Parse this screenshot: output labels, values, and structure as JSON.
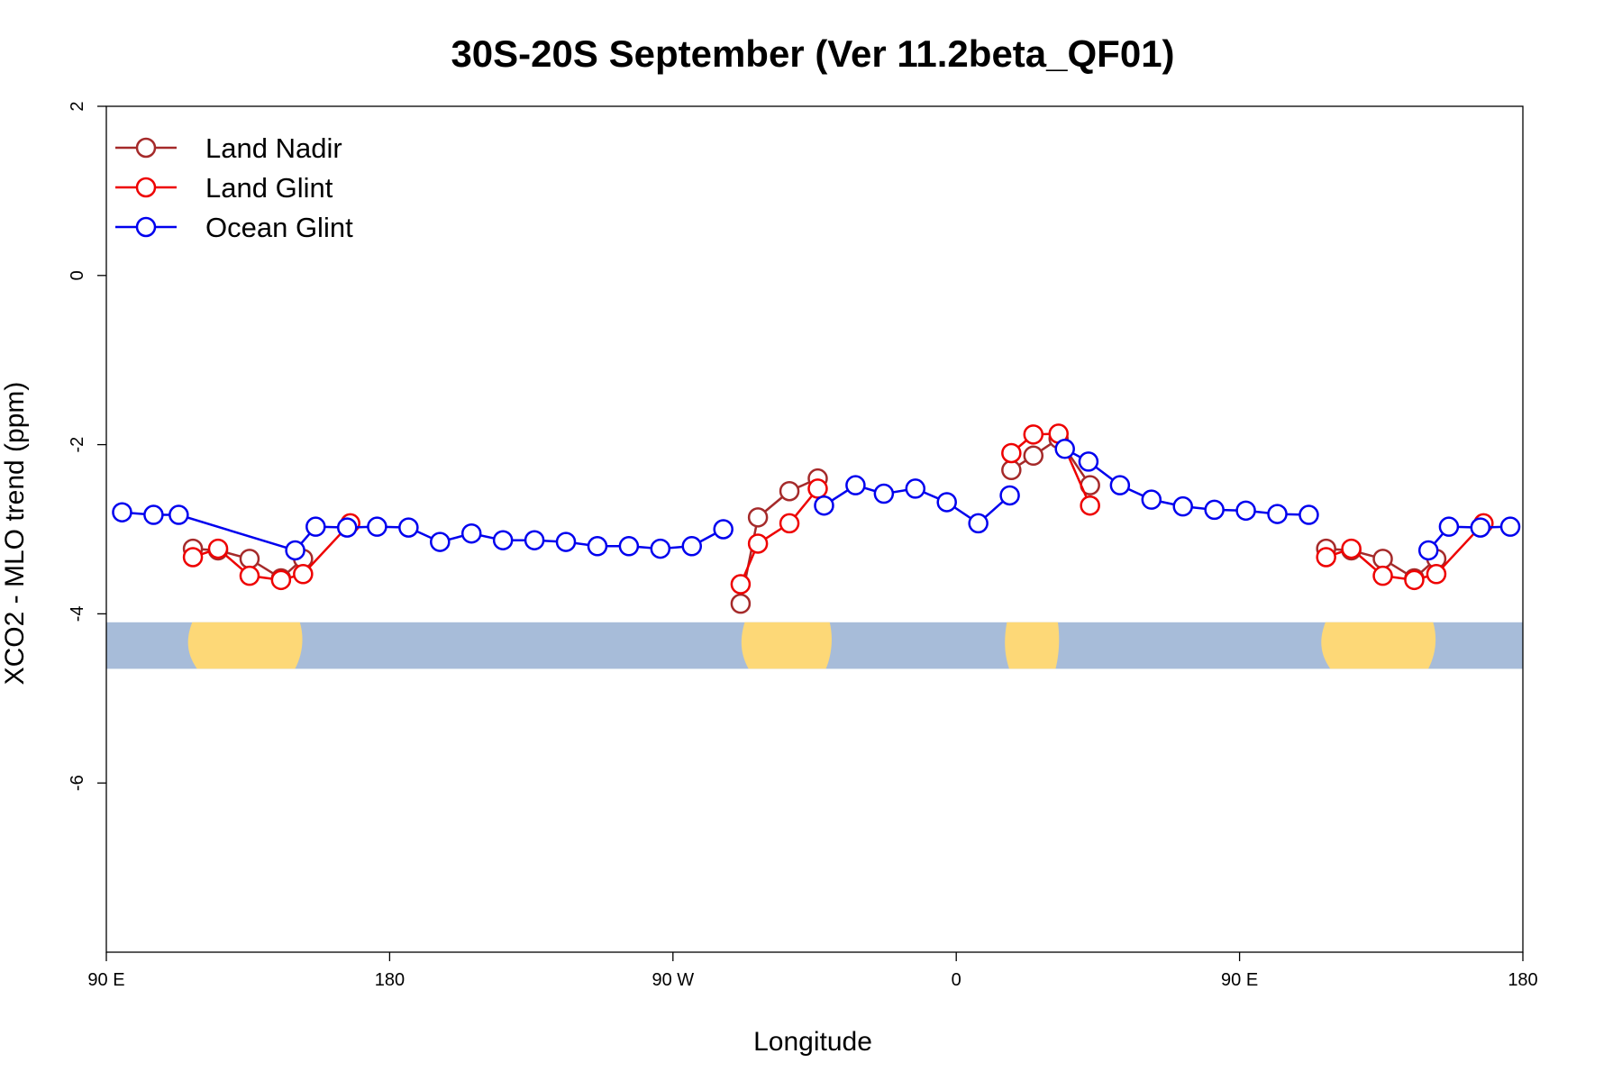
{
  "chart_data": {
    "type": "line",
    "title": "30S-20S September (Ver 11.2beta_QF01)",
    "xlabel": "Longitude",
    "ylabel": "XCO2 - MLO trend (ppm)",
    "xlim": [
      90,
      540
    ],
    "ylim": [
      -8,
      2
    ],
    "x_ticks": [
      {
        "value": 90,
        "label": "90 E"
      },
      {
        "value": 180,
        "label": "180"
      },
      {
        "value": 270,
        "label": "90 W"
      },
      {
        "value": 360,
        "label": "0"
      },
      {
        "value": 450,
        "label": "90 E"
      },
      {
        "value": 540,
        "label": "180"
      }
    ],
    "y_ticks": [
      {
        "value": 2,
        "label": "2"
      },
      {
        "value": 0,
        "label": "0"
      },
      {
        "value": -2,
        "label": "-2"
      },
      {
        "value": -4,
        "label": "-4"
      },
      {
        "value": -6,
        "label": "-6"
      }
    ],
    "legend_position": "top-left",
    "grid": false,
    "series": [
      {
        "name": "Land Nadir",
        "color": "#a52a2a",
        "segments": [
          [
            [
              117.5,
              -3.23
            ],
            [
              125.5,
              -3.25
            ],
            [
              135.5,
              -3.35
            ],
            [
              145.5,
              -3.58
            ],
            [
              152.5,
              -3.35
            ]
          ],
          [
            [
              291.5,
              -3.88
            ],
            [
              297,
              -2.86
            ],
            [
              307,
              -2.55
            ],
            [
              316,
              -2.4
            ]
          ],
          [
            [
              377.5,
              -2.3
            ],
            [
              384.5,
              -2.13
            ],
            [
              392.5,
              -1.93
            ],
            [
              402.5,
              -2.48
            ]
          ],
          [
            [
              477.5,
              -3.23
            ],
            [
              485.5,
              -3.25
            ],
            [
              495.5,
              -3.35
            ],
            [
              505.5,
              -3.58
            ],
            [
              512.5,
              -3.35
            ]
          ]
        ]
      },
      {
        "name": "Land Glint",
        "color": "#ee0000",
        "segments": [
          [
            [
              117.5,
              -3.33
            ],
            [
              125.5,
              -3.23
            ],
            [
              135.5,
              -3.55
            ],
            [
              145.5,
              -3.6
            ],
            [
              152.5,
              -3.53
            ],
            [
              167.5,
              -2.93
            ]
          ],
          [
            [
              291.5,
              -3.65
            ],
            [
              297,
              -3.17
            ],
            [
              307,
              -2.93
            ],
            [
              316,
              -2.52
            ]
          ],
          [
            [
              377.5,
              -2.1
            ],
            [
              384.5,
              -1.88
            ],
            [
              392.5,
              -1.87
            ],
            [
              402.5,
              -2.72
            ]
          ],
          [
            [
              477.5,
              -3.33
            ],
            [
              485.5,
              -3.23
            ],
            [
              495.5,
              -3.55
            ],
            [
              505.5,
              -3.6
            ],
            [
              512.5,
              -3.53
            ],
            [
              527.5,
              -2.93
            ]
          ]
        ]
      },
      {
        "name": "Ocean Glint",
        "color": "#0000ee",
        "segments": [
          [
            [
              95,
              -2.8
            ],
            [
              105,
              -2.83
            ],
            [
              113,
              -2.83
            ],
            [
              150,
              -3.25
            ],
            [
              156.5,
              -2.97
            ],
            [
              166.5,
              -2.98
            ],
            [
              176,
              -2.97
            ],
            [
              186,
              -2.98
            ],
            [
              196,
              -3.15
            ],
            [
              206,
              -3.05
            ],
            [
              216,
              -3.13
            ],
            [
              226,
              -3.13
            ],
            [
              236,
              -3.15
            ],
            [
              246,
              -3.2
            ],
            [
              256,
              -3.2
            ],
            [
              266,
              -3.23
            ],
            [
              276,
              -3.2
            ],
            [
              286,
              -3.0
            ]
          ],
          [
            [
              318,
              -2.72
            ],
            [
              328,
              -2.48
            ],
            [
              337,
              -2.58
            ],
            [
              347,
              -2.52
            ],
            [
              357,
              -2.68
            ],
            [
              367,
              -2.93
            ],
            [
              377,
              -2.6
            ]
          ],
          [
            [
              394.5,
              -2.05
            ],
            [
              402,
              -2.2
            ],
            [
              412,
              -2.48
            ],
            [
              422,
              -2.65
            ],
            [
              432,
              -2.73
            ],
            [
              442,
              -2.77
            ],
            [
              452,
              -2.78
            ],
            [
              462,
              -2.82
            ],
            [
              472,
              -2.83
            ]
          ],
          [
            [
              510,
              -3.25
            ],
            [
              516.5,
              -2.97
            ],
            [
              526.5,
              -2.98
            ],
            [
              536,
              -2.97
            ]
          ]
        ]
      }
    ],
    "map_strip": {
      "y_range": [
        -4.65,
        -4.1
      ],
      "ocean_color": "#a7bcd9",
      "land_color": "#fdd877",
      "land_spans": [
        [
          115,
          153
        ],
        [
          291,
          321
        ],
        [
          375,
          393
        ],
        [
          475,
          513
        ]
      ]
    }
  }
}
